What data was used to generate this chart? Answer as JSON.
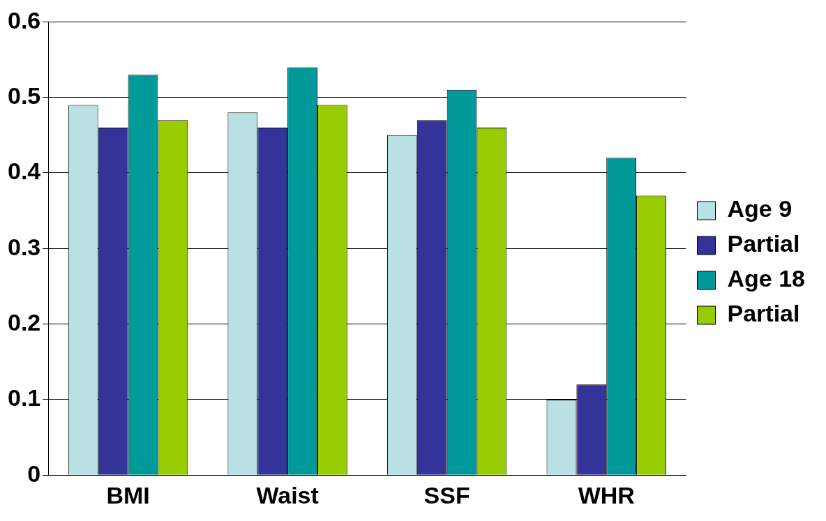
{
  "chart_data": {
    "type": "bar",
    "categories": [
      "BMI",
      "Waist",
      "SSF",
      "WHR"
    ],
    "series": [
      {
        "name": "Age 9",
        "color": "#b9e0e3",
        "values": [
          0.49,
          0.48,
          0.45,
          0.1
        ]
      },
      {
        "name": "Partial",
        "color": "#333399",
        "values": [
          0.46,
          0.46,
          0.47,
          0.12
        ]
      },
      {
        "name": "Age 18",
        "color": "#009999",
        "values": [
          0.53,
          0.54,
          0.51,
          0.42
        ]
      },
      {
        "name": "Partial",
        "color": "#99cc00",
        "values": [
          0.47,
          0.49,
          0.46,
          0.37
        ]
      }
    ],
    "ylim": [
      0,
      0.6
    ],
    "yticks": [
      0,
      0.1,
      0.2,
      0.3,
      0.4,
      0.5,
      0.6
    ],
    "grid": "y",
    "legend": "right"
  }
}
